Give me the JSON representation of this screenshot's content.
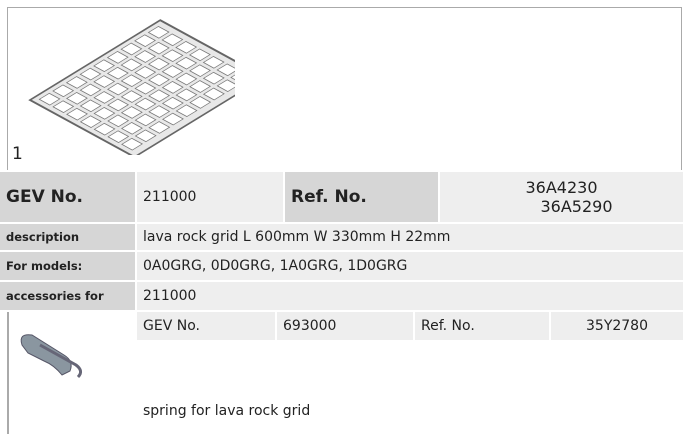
{
  "figure_label": "1",
  "table": {
    "rows": [
      [
        "GEV No.",
        "211000",
        "Ref. No.",
        "36A4230",
        "36A5290"
      ],
      [
        "description",
        "lava rock grid  L 600mm W 330mm H 22mm"
      ],
      [
        "For models:",
        "0A0GRG, 0D0GRG, 1A0GRG, 1D0GRG"
      ],
      [
        "accessories for",
        "211000"
      ]
    ]
  },
  "accessory": {
    "cells": [
      "GEV No.",
      "693000",
      "Ref. No.",
      "35Y2780"
    ],
    "description": "spring  for lava rock grid"
  }
}
